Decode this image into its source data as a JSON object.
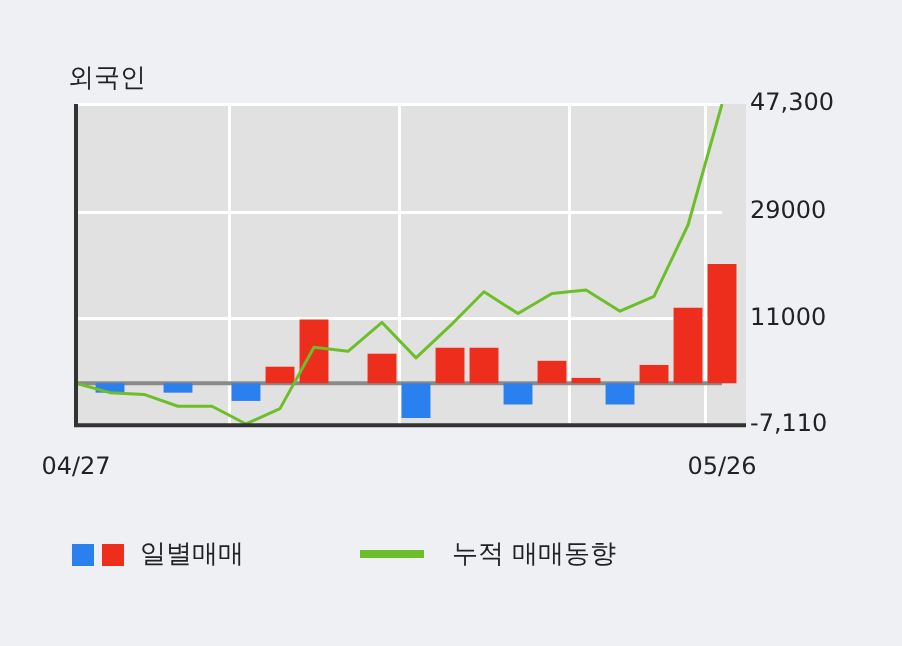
{
  "chart_data": {
    "type": "bar",
    "title": "외국인",
    "categories": [
      "04/27",
      null,
      null,
      null,
      null,
      null,
      null,
      null,
      null,
      null,
      null,
      null,
      null,
      null,
      null,
      null,
      null,
      null,
      null,
      "05/26"
    ],
    "series": [
      {
        "name": "일별매매",
        "colors": [
          null,
          "#2a80ee",
          null,
          "#2a80ee",
          null,
          "#2a80ee",
          "#ee2e1c",
          "#ee2e1c",
          null,
          "#ee2e1c",
          "#2a80ee",
          "#ee2e1c",
          "#ee2e1c",
          "#2a80ee",
          "#ee2e1c",
          "#ee2e1c",
          "#2a80ee",
          "#ee2e1c",
          "#ee2e1c",
          "#ee2e1c"
        ],
        "values": [
          null,
          -1600,
          null,
          -1600,
          null,
          -3000,
          2800,
          10800,
          null,
          5000,
          -5900,
          6000,
          6000,
          -3600,
          3800,
          900,
          -3600,
          3100,
          12800,
          20200
        ]
      },
      {
        "name": "누적 매매동향",
        "type": "line",
        "color": "#6cbf2a",
        "values": [
          0,
          -1600,
          -1900,
          -3900,
          -3900,
          -6900,
          -4300,
          6100,
          5400,
          10300,
          4300,
          9700,
          15500,
          11800,
          15200,
          15800,
          12200,
          14700,
          26800,
          47300
        ]
      }
    ],
    "ylim": [
      -7110,
      47300
    ],
    "yticks": [
      {
        "value": -7110,
        "label": "-7,110"
      },
      11000,
      29000,
      {
        "value": 47300,
        "label": "47,300"
      }
    ],
    "ref_lines": [
      {
        "axis": "y",
        "value": 0,
        "color": "#8a8a8a"
      }
    ],
    "grid": true,
    "legend": "bottom",
    "marker": "none",
    "line_style": "solid"
  }
}
